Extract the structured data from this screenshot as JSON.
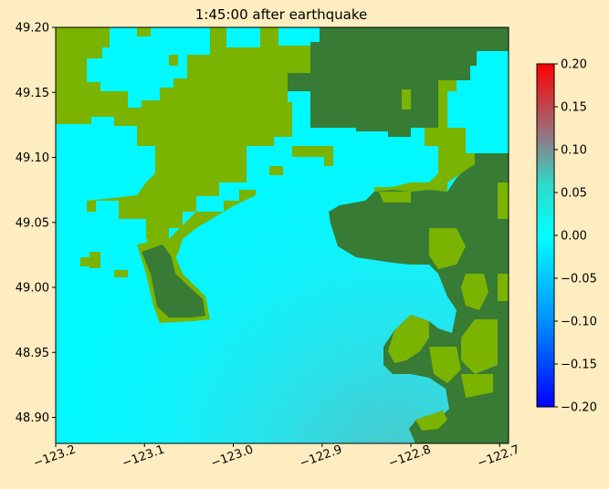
{
  "chart_data": {
    "type": "heatmap",
    "title": "1:45:00 after earthquake",
    "xlabel": "",
    "ylabel": "",
    "xlim": [
      -123.2,
      -122.69
    ],
    "ylim": [
      48.88,
      49.2
    ],
    "x_ticks": [
      -123.2,
      -123.1,
      -123.0,
      -122.9,
      -122.8,
      -122.7
    ],
    "x_tick_labels": [
      "−123.2",
      "−123.1",
      "−123.0",
      "−122.9",
      "−122.8",
      "−122.7"
    ],
    "y_ticks": [
      48.9,
      48.95,
      49.0,
      49.05,
      49.1,
      49.15,
      49.2
    ],
    "y_tick_labels": [
      "48.90",
      "48.95",
      "49.00",
      "49.05",
      "49.10",
      "49.15",
      "49.20"
    ],
    "colorbar": {
      "range": [
        -0.2,
        0.2
      ],
      "ticks": [
        -0.2,
        -0.15,
        -0.1,
        -0.05,
        0.0,
        0.05,
        0.1,
        0.15,
        0.2
      ],
      "tick_labels": [
        "−0.20",
        "−0.15",
        "−0.10",
        "−0.05",
        "0.00",
        "0.05",
        "0.10",
        "0.15",
        "0.20"
      ],
      "colormap": [
        "#0000ff",
        "#00aaff",
        "#00ffff",
        "#40c0b0",
        "#a06070",
        "#ff0000"
      ]
    },
    "colors": {
      "water": "#00f6ff",
      "dry_land": "#7ab300",
      "wet_land": "#377b35"
    }
  }
}
